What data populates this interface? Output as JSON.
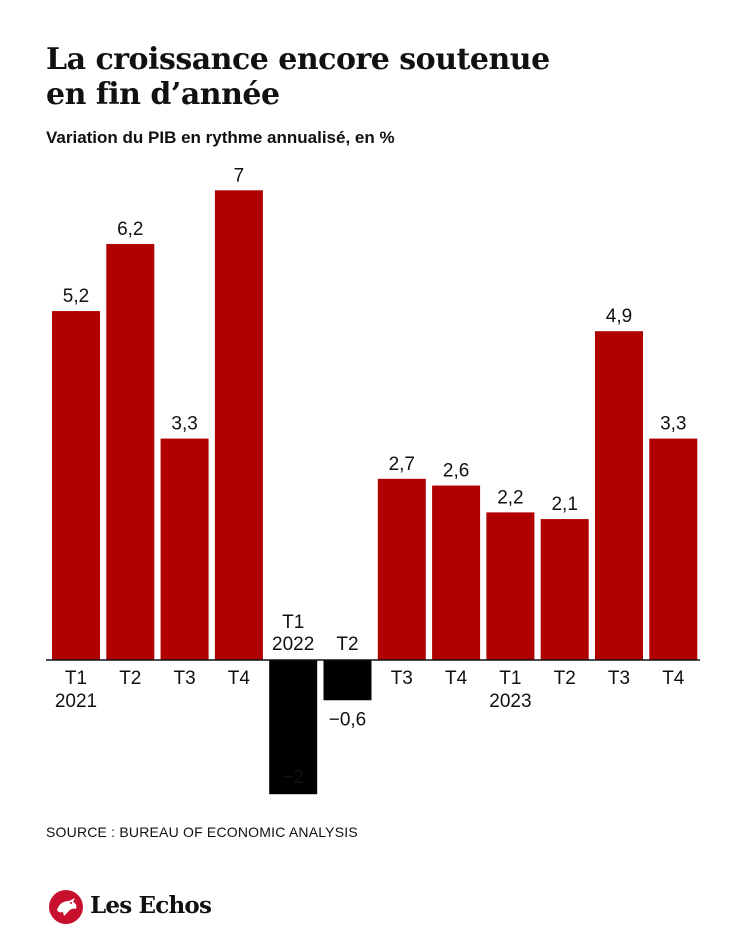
{
  "header": {
    "title_line1": "La croissance encore soutenue",
    "title_line2": "en fin d’année",
    "subtitle": "Variation du PIB en rythme annualisé, en %"
  },
  "footer": {
    "source": "SOURCE : BUREAU OF ECONOMIC ANALYSIS",
    "brand": "Les Echos"
  },
  "colors": {
    "positive": "#b00000",
    "negative": "#000000",
    "brand_red": "#c8102e"
  },
  "chart_data": {
    "type": "bar",
    "title": "La croissance encore soutenue en fin d’année",
    "subtitle": "Variation du PIB en rythme annualisé, en %",
    "categories": [
      {
        "quarter": "T1",
        "year": "2021"
      },
      {
        "quarter": "T2",
        "year": ""
      },
      {
        "quarter": "T3",
        "year": ""
      },
      {
        "quarter": "T4",
        "year": ""
      },
      {
        "quarter": "T1",
        "year": "2022"
      },
      {
        "quarter": "T2",
        "year": ""
      },
      {
        "quarter": "T3",
        "year": ""
      },
      {
        "quarter": "T4",
        "year": ""
      },
      {
        "quarter": "T1",
        "year": "2023"
      },
      {
        "quarter": "T2",
        "year": ""
      },
      {
        "quarter": "T3",
        "year": ""
      },
      {
        "quarter": "T4",
        "year": ""
      }
    ],
    "values": [
      5.2,
      6.2,
      3.3,
      7,
      -2,
      -0.6,
      2.7,
      2.6,
      2.2,
      2.1,
      4.9,
      3.3
    ],
    "value_labels": [
      "5,2",
      "6,2",
      "3,3",
      "7",
      "−2",
      "−0,6",
      "2,7",
      "2,6",
      "2,2",
      "2,1",
      "4,9",
      "3,3"
    ],
    "ylim": [
      -2,
      7
    ],
    "grid": false,
    "legend": "none"
  }
}
